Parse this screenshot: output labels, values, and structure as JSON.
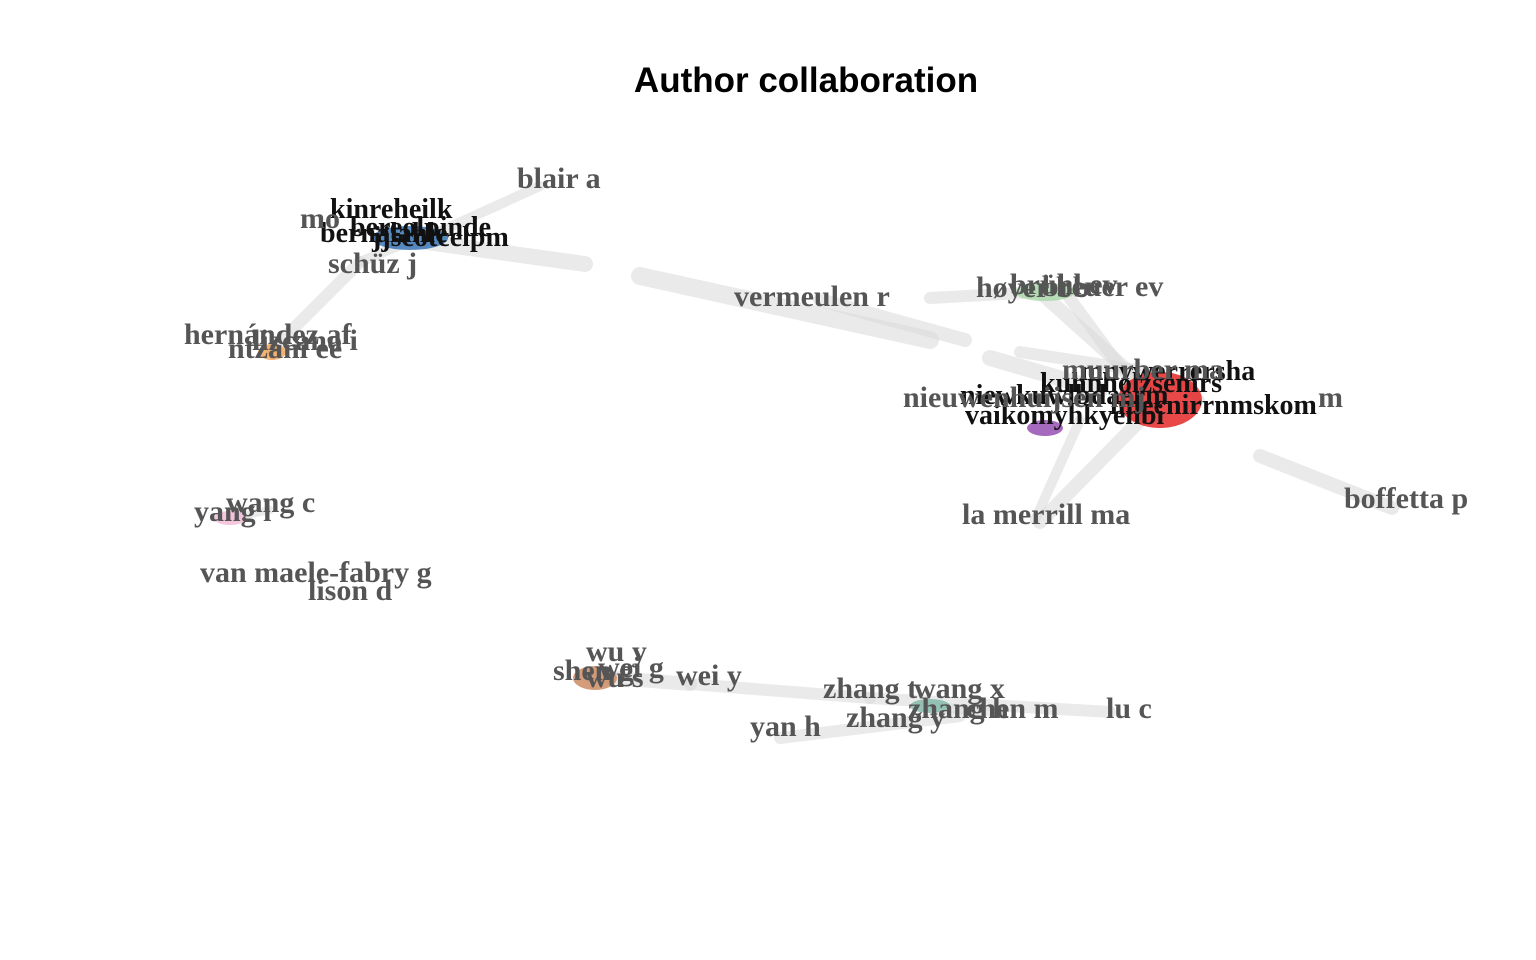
{
  "title": "Author collaboration",
  "colors": {
    "edge": "#d9d9d9",
    "cluster_red": "#e41a1c",
    "cluster_blue": "#2f6fb3",
    "cluster_orange": "#f0a050",
    "cluster_green": "#a8d8a8",
    "cluster_purple": "#8e44ad",
    "cluster_pink": "#f4b6d6",
    "cluster_brown": "#c8845a",
    "cluster_teal": "#7fb8a8"
  },
  "labels": {
    "blair_a": "blair a",
    "schuz_j": "schüz j",
    "hernandez_af": "hernández af",
    "lizcano_i": "lizcano i",
    "ntzani_ee": "ntzani ee",
    "vermeulen_r": "vermeulen r",
    "hoyer_bb": "høyer bb",
    "bruhl_ev": "brühl ev",
    "breuer_ev": "breuer ev",
    "boffetta_p": "boffetta p",
    "la_merrill_ma": "la merrill ma",
    "wang_c": "wang c",
    "yang_l": "yang l",
    "van_maele_fabry_g": "van maele-fabry g",
    "lison_d": "lison d",
    "wu_y": "wu y",
    "shen_g": "shen g",
    "wei_g": "wei g",
    "wu_s": "wu s",
    "wei_y": "wei y",
    "zhang_t": "zhang t",
    "wang_x": "wang x",
    "zhang_y": "zhang y",
    "zhang_h": "zhang h",
    "chen_m": "chen m",
    "lu_c": "lu c",
    "yan_h": "yan h",
    "cluster_red_visible": "nieuwenhuijsen mj",
    "cluster_red_right": "m",
    "cluster_red_top": "muurber ma",
    "cluster_blue_left": "mo"
  },
  "dense_cluster_blue_fragments": [
    "kinreheilk",
    "bernalahle",
    "bereolpinde",
    "jjscotcelpm"
  ],
  "dense_cluster_red_fragments": [
    "niewkuwlbdaerm",
    "kuhnholzsemrs",
    "vaikomyhkyenbi",
    "mnywerrersha",
    "lmecnirrnmskom"
  ]
}
